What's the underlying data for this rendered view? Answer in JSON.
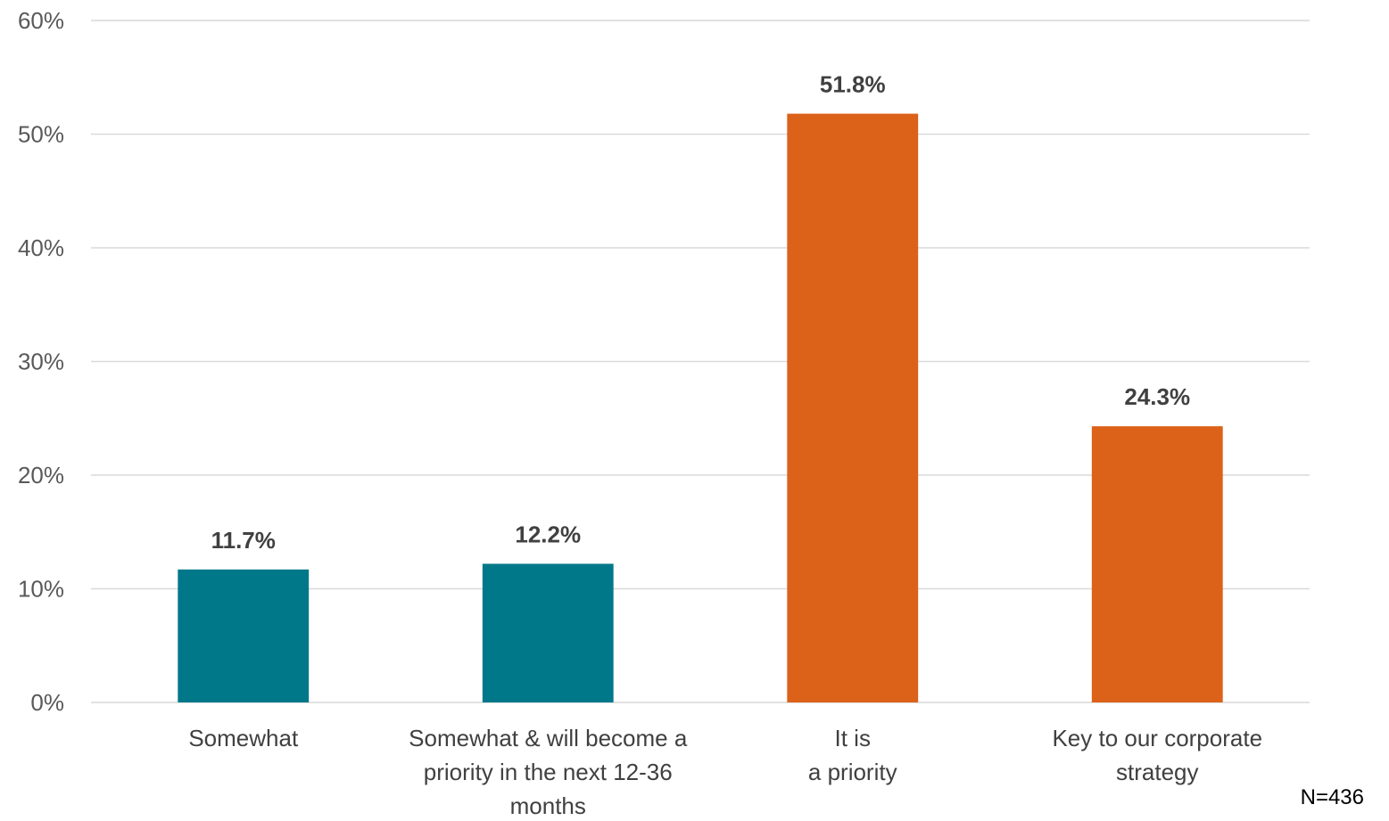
{
  "chart_data": {
    "type": "bar",
    "categories": [
      [
        "Somewhat"
      ],
      [
        "Somewhat & will become a",
        "priority in the next 12-36",
        "months"
      ],
      [
        "It is",
        "a priority"
      ],
      [
        "Key to our corporate",
        "strategy"
      ]
    ],
    "values": [
      11.7,
      12.2,
      51.8,
      24.3
    ],
    "data_labels": [
      "11.7%",
      "12.2%",
      "51.8%",
      "24.3%"
    ],
    "bar_colors": [
      "#00788A",
      "#00788A",
      "#DC6119",
      "#DC6119"
    ],
    "ylim": [
      0,
      60
    ],
    "yticks": [
      0,
      10,
      20,
      30,
      40,
      50,
      60
    ],
    "ytick_labels": [
      "0%",
      "10%",
      "20%",
      "30%",
      "40%",
      "50%",
      "60%"
    ],
    "grid": true,
    "gridline_color": "#D9D9D9",
    "title": "",
    "xlabel": "",
    "ylabel": ""
  },
  "note": "N=436"
}
